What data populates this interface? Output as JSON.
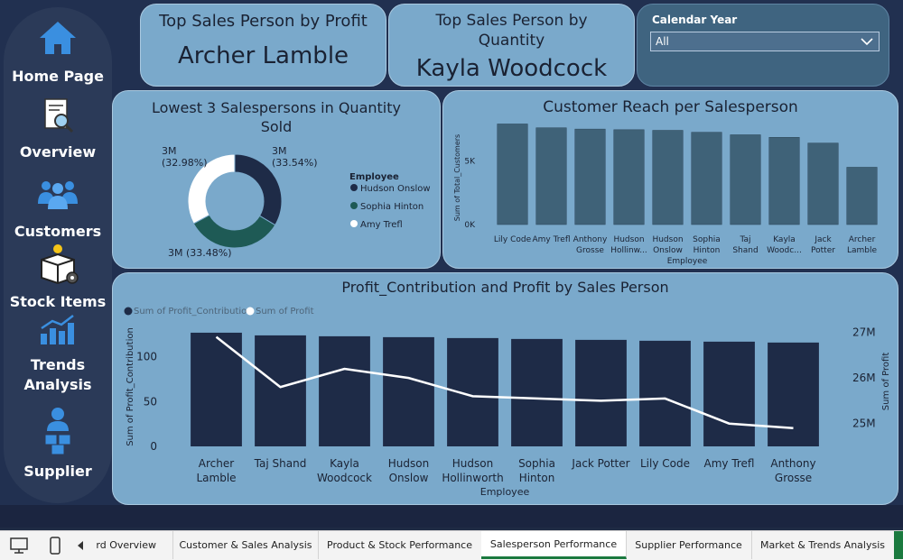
{
  "nav": {
    "items": [
      {
        "label": "Home Page",
        "icon": "home-icon"
      },
      {
        "label": "Overview",
        "icon": "report-search-icon"
      },
      {
        "label": "Customers",
        "icon": "customers-group-icon"
      },
      {
        "label": "Stock Items",
        "icon": "stock-box-icon"
      },
      {
        "label": "Trends",
        "label2": "Analysis",
        "icon": "trend-chart-icon"
      },
      {
        "label": "Supplier",
        "icon": "supplier-icon"
      }
    ]
  },
  "kpis": {
    "profit": {
      "title": "Top Sales Person by Profit",
      "value": "Archer Lamble"
    },
    "quantity": {
      "title_line1": "Top Sales Person by",
      "title_line2": "Quantity",
      "value": "Kayla Woodcock"
    }
  },
  "filter": {
    "label": "Calendar Year",
    "selected": "All"
  },
  "donut": {
    "title_line1": "Lowest 3 Salespersons in Quantity",
    "title_line2": "Sold",
    "legend_title": "Employee",
    "slices": [
      {
        "name": "Hudson Onslow",
        "value_label": "3M",
        "pct_label": "(33.54%)",
        "pct": 33.54,
        "color": "#1e2b47"
      },
      {
        "name": "Sophia Hinton",
        "value_label": "3M",
        "pct_label": "(33.48%)",
        "pct": 33.48,
        "color": "#1e5a55"
      },
      {
        "name": "Amy Trefl",
        "value_label": "3M",
        "pct_label": "(32.98%)",
        "pct": 32.98,
        "color": "#ffffff"
      }
    ]
  },
  "chart_data": [
    {
      "type": "bar",
      "title": "Customer Reach per Salesperson",
      "xlabel": "Employee",
      "ylabel": "Sum of Total_Customers",
      "categories": [
        [
          "Lily Code"
        ],
        [
          "Amy Trefl"
        ],
        [
          "Anthony",
          "Grosse"
        ],
        [
          "Hudson",
          "Hollinw..."
        ],
        [
          "Hudson",
          "Onslow"
        ],
        [
          "Sophia",
          "Hinton"
        ],
        [
          "Taj",
          "Shand"
        ],
        [
          "Kayla",
          "Woodc..."
        ],
        [
          "Jack",
          "Potter"
        ],
        [
          "Archer",
          "Lamble"
        ]
      ],
      "values": [
        7900,
        7600,
        7500,
        7450,
        7400,
        7250,
        7050,
        6850,
        6400,
        4500
      ],
      "yticks": [
        {
          "v": 0,
          "label": "0K"
        },
        {
          "v": 5000,
          "label": "5K"
        }
      ],
      "ylim": [
        0,
        8500
      ],
      "bar_color": "#3f6278"
    },
    {
      "type": "bar+line",
      "title": "Profit_Contribution and Profit by Sales Person",
      "xlabel": "Employee",
      "ylabel": "Sum of Profit_Contribution",
      "y2label": "Sum of Profit",
      "legend": [
        "Sum of Profit_Contribution",
        "Sum of Profit"
      ],
      "categories": [
        [
          "Archer",
          "Lamble"
        ],
        [
          "Taj Shand"
        ],
        [
          "Kayla",
          "Woodcock"
        ],
        [
          "Hudson",
          "Onslow"
        ],
        [
          "Hudson",
          "Hollinworth"
        ],
        [
          "Sophia",
          "Hinton"
        ],
        [
          "Jack Potter"
        ],
        [
          "Lily Code"
        ],
        [
          "Amy Trefl"
        ],
        [
          "Anthony",
          "Grosse"
        ]
      ],
      "series": [
        {
          "name": "Sum of Profit_Contribution",
          "values": [
            127,
            124,
            123,
            122,
            121,
            120,
            119,
            118,
            117,
            116
          ],
          "color": "#1e2b47"
        },
        {
          "name": "Sum of Profit",
          "values": [
            26.9,
            25.8,
            26.2,
            26.0,
            25.6,
            25.55,
            25.5,
            25.55,
            25.0,
            24.9
          ],
          "color": "#ffffff"
        }
      ],
      "yticks": [
        {
          "v": 0,
          "label": "0"
        },
        {
          "v": 50,
          "label": "50"
        },
        {
          "v": 100,
          "label": "100"
        }
      ],
      "ylim": [
        0,
        135
      ],
      "y2ticks": [
        {
          "v": 25,
          "label": "25M"
        },
        {
          "v": 26,
          "label": "26M"
        },
        {
          "v": 27,
          "label": "27M"
        }
      ],
      "y2lim": [
        24.5,
        27.15
      ]
    }
  ],
  "tabs": [
    {
      "label": "rd Overview"
    },
    {
      "label": "Customer & Sales Analysis"
    },
    {
      "label": "Product & Stock Performance"
    },
    {
      "label": "Salesperson Performance",
      "active": true
    },
    {
      "label": "Supplier Performance"
    },
    {
      "label": "Market & Trends Analysis"
    }
  ]
}
